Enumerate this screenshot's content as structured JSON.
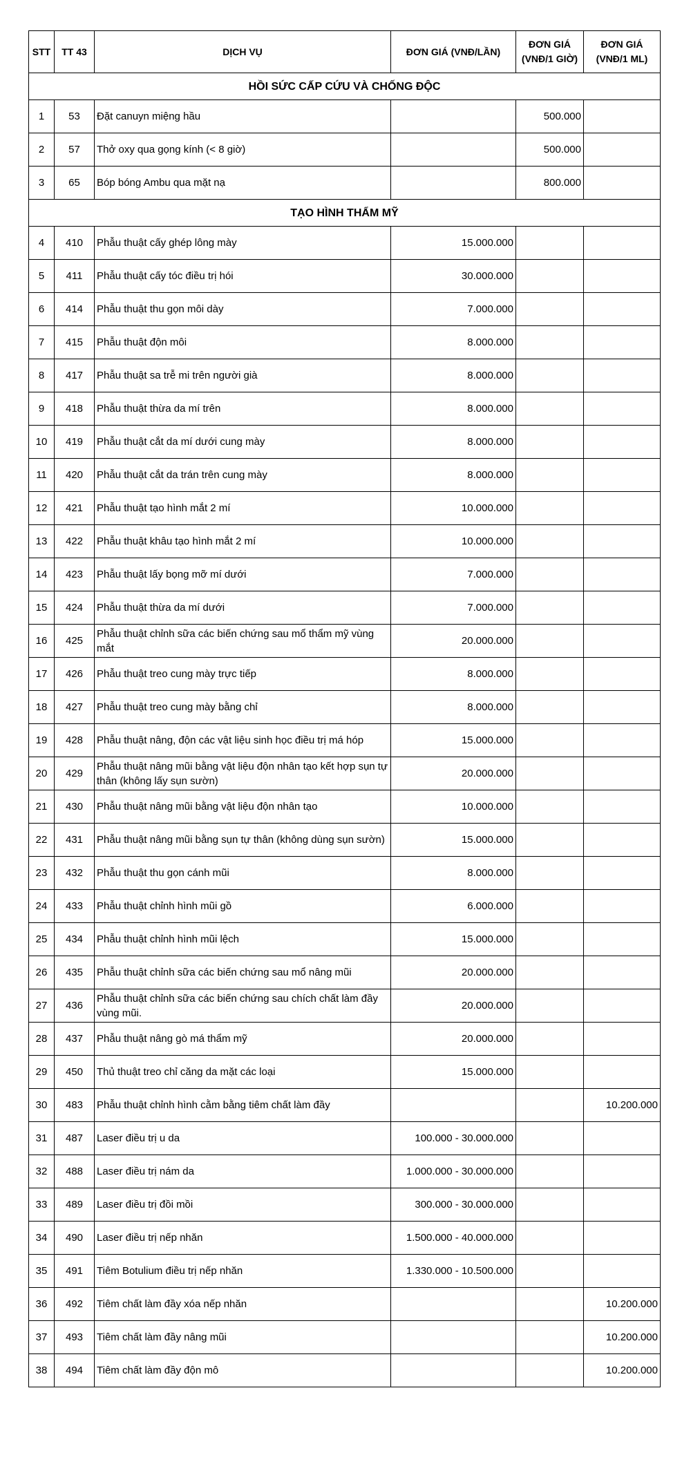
{
  "table": {
    "header": [
      "STT",
      "TT 43",
      "DỊCH VỤ",
      "ĐƠN GIÁ (VNĐ/LẦN)",
      "ĐƠN GIÁ (VNĐ/1 GIỜ)",
      "ĐƠN GIÁ (VNĐ/1 ML)"
    ],
    "sections": [
      {
        "title": "HỒI SỨC CẤP CỨU VÀ CHỐNG ĐỘC",
        "rows": [
          [
            1,
            53,
            "Đặt canuyn miệng hầu",
            null,
            "500.000",
            null
          ],
          [
            2,
            57,
            "Thở oxy qua gọng kính (< 8 giờ)",
            null,
            "500.000",
            null
          ],
          [
            3,
            65,
            "Bóp bóng Ambu qua mặt nạ",
            null,
            "800.000",
            null
          ]
        ]
      },
      {
        "title": "TẠO HÌNH THẨM MỸ",
        "rows": [
          [
            4,
            410,
            "Phẫu thuật cấy ghép lông mày",
            "15.000.000",
            null,
            null
          ],
          [
            5,
            411,
            "Phẫu thuật cấy tóc điều trị hói",
            "30.000.000",
            null,
            null
          ],
          [
            6,
            414,
            "Phẫu thuật thu gọn môi dày",
            "7.000.000",
            null,
            null
          ],
          [
            7,
            415,
            "Phẫu thuật độn môi",
            "8.000.000",
            null,
            null
          ],
          [
            8,
            417,
            "Phẫu thuật sa trễ mi trên người già",
            "8.000.000",
            null,
            null
          ],
          [
            9,
            418,
            "Phẫu thuật thừa da mí trên",
            "8.000.000",
            null,
            null
          ],
          [
            10,
            419,
            "Phẫu thuật cắt da mí dưới cung mày",
            "8.000.000",
            null,
            null
          ],
          [
            11,
            420,
            "Phẫu thuật cắt da trán trên cung mày",
            "8.000.000",
            null,
            null
          ],
          [
            12,
            421,
            "Phẫu thuật tạo hình mắt 2 mí",
            "10.000.000",
            null,
            null
          ],
          [
            13,
            422,
            "Phẫu thuật khâu tạo hình mắt 2 mí",
            "10.000.000",
            null,
            null
          ],
          [
            14,
            423,
            "Phẫu thuật lấy bọng mỡ mí dưới",
            "7.000.000",
            null,
            null
          ],
          [
            15,
            424,
            "Phẫu thuật thừa da mí dưới",
            "7.000.000",
            null,
            null
          ],
          [
            16,
            425,
            "Phẫu thuật chỉnh sữa các biến chứng sau mổ thẩm mỹ vùng mắt",
            "20.000.000",
            null,
            null
          ],
          [
            17,
            426,
            "Phẫu thuật treo cung mày trực tiếp",
            "8.000.000",
            null,
            null
          ],
          [
            18,
            427,
            "Phẫu thuật treo cung mày bằng chỉ",
            "8.000.000",
            null,
            null
          ],
          [
            19,
            428,
            "Phẫu thuật nâng, độn các vật liệu sinh học điều trị má hóp",
            "15.000.000",
            null,
            null
          ],
          [
            20,
            429,
            "Phẫu thuật nâng mũi bằng vật liệu độn nhân tạo kết hợp sụn tự thân (không lấy sụn sườn)",
            "20.000.000",
            null,
            null
          ],
          [
            21,
            430,
            "Phẫu thuật nâng mũi bằng vật liệu độn nhân tạo",
            "10.000.000",
            null,
            null
          ],
          [
            22,
            431,
            "Phẫu thuật nâng mũi bằng sụn tự thân (không dùng sụn sườn)",
            "15.000.000",
            null,
            null
          ],
          [
            23,
            432,
            "Phẫu thuật thu gọn cánh mũi",
            "8.000.000",
            null,
            null
          ],
          [
            24,
            433,
            "Phẫu thuật chỉnh hình mũi gồ",
            "6.000.000",
            null,
            null
          ],
          [
            25,
            434,
            "Phẫu thuật chỉnh hình mũi lệch",
            "15.000.000",
            null,
            null
          ],
          [
            26,
            435,
            "Phẫu thuật chỉnh sữa các biến chứng sau mổ nâng mũi",
            "20.000.000",
            null,
            null
          ],
          [
            27,
            436,
            "Phẫu thuật chỉnh sữa các biến chứng sau chích chất làm đầy vùng mũi.",
            "20.000.000",
            null,
            null
          ],
          [
            28,
            437,
            "Phẫu thuật nâng gò má thẩm mỹ",
            "20.000.000",
            null,
            null
          ],
          [
            29,
            450,
            "Thủ thuật treo chỉ căng da mặt các loại",
            "15.000.000",
            null,
            null
          ],
          [
            30,
            483,
            "Phẫu thuật chỉnh hình cằm bằng tiêm chất làm đầy",
            null,
            null,
            "10.200.000"
          ],
          [
            31,
            487,
            "Laser điều trị u da",
            "100.000 - 30.000.000",
            null,
            null
          ],
          [
            32,
            488,
            "Laser điều trị nám da",
            "1.000.000 - 30.000.000",
            null,
            null
          ],
          [
            33,
            489,
            "Laser điều trị đồi mồi",
            "300.000 - 30.000.000",
            null,
            null
          ],
          [
            34,
            490,
            "Laser điều trị nếp nhăn",
            "1.500.000 - 40.000.000",
            null,
            null
          ],
          [
            35,
            491,
            "Tiêm Botulium điều trị nếp nhăn",
            "1.330.000 - 10.500.000",
            null,
            null
          ],
          [
            36,
            492,
            "Tiêm chất làm đầy xóa nếp nhăn",
            null,
            null,
            "10.200.000"
          ],
          [
            37,
            493,
            "Tiêm chất làm đầy nâng mũi",
            null,
            null,
            "10.200.000"
          ],
          [
            38,
            494,
            "Tiêm chất làm đầy độn mô",
            null,
            null,
            "10.200.000"
          ]
        ]
      }
    ]
  }
}
